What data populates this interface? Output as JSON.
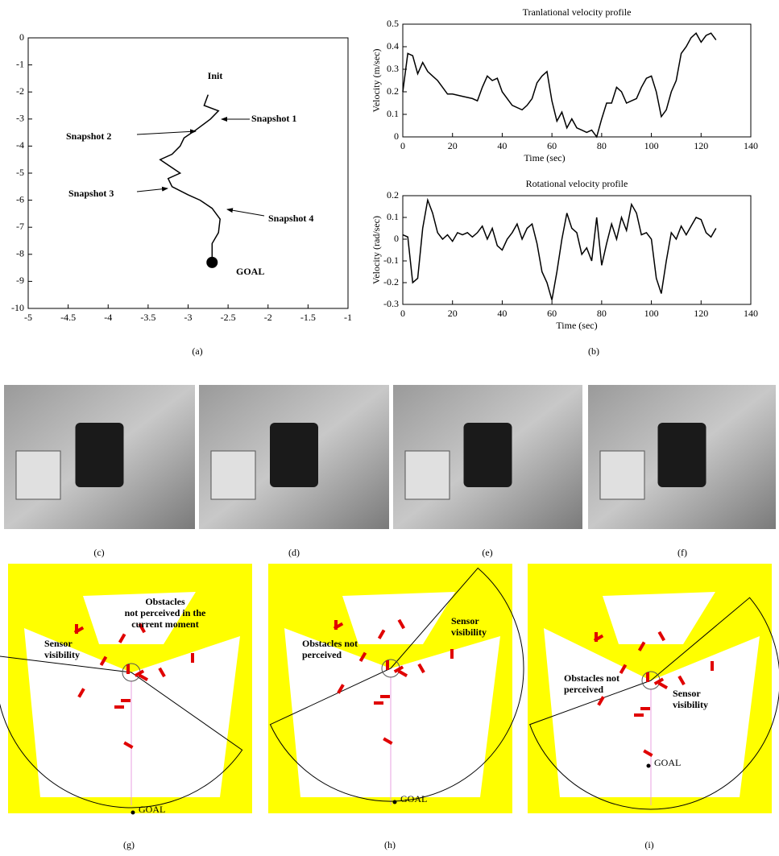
{
  "chart_data": [
    {
      "type": "line",
      "x": [
        -2.75,
        -2.8,
        -2.62,
        -2.72,
        -2.9,
        -3.05,
        -3.1,
        -3.2,
        -3.35,
        -3.2,
        -3.1,
        -3.25,
        -3.2,
        -3.0,
        -2.85,
        -2.7,
        -2.6,
        -2.62,
        -2.7,
        -2.7
      ],
      "series": [
        {
          "color": "#000000",
          "values": [
            -2.1,
            -2.5,
            -2.7,
            -3.0,
            -3.4,
            -3.7,
            -4.0,
            -4.3,
            -4.5,
            -4.8,
            -5.0,
            -5.2,
            -5.5,
            -5.8,
            -6.0,
            -6.3,
            -6.7,
            -7.2,
            -7.6,
            -8.3
          ]
        }
      ],
      "goal": {
        "x": -2.7,
        "y": -8.3
      },
      "xlim": [
        -5,
        -1
      ],
      "ylim": [
        -10,
        0
      ],
      "xticks": [
        -5,
        -4.5,
        -4,
        -3.5,
        -3,
        -2.5,
        -2,
        -1.5,
        -1
      ],
      "yticks": [
        0,
        -1,
        -2,
        -3,
        -4,
        -5,
        -6,
        -7,
        -8,
        -9,
        -10
      ],
      "annotations": [
        "Init",
        "Snapshot 1",
        "Snapshot 2",
        "Snapshot 3",
        "Snapshot 4",
        "GOAL"
      ]
    },
    {
      "type": "line",
      "title": "Tranlational velocity profile",
      "x_label": "Time (sec)",
      "y_label": "Velocity (m/sec)",
      "x": [
        0,
        2,
        4,
        6,
        8,
        10,
        12,
        14,
        16,
        18,
        20,
        24,
        28,
        30,
        32,
        34,
        36,
        38,
        40,
        44,
        48,
        50,
        52,
        54,
        56,
        58,
        60,
        62,
        64,
        66,
        68,
        70,
        72,
        74,
        76,
        78,
        80,
        82,
        84,
        86,
        88,
        90,
        92,
        94,
        96,
        98,
        100,
        102,
        104,
        106,
        108,
        110,
        112,
        114,
        116,
        118,
        120,
        122,
        124,
        126
      ],
      "series": [
        {
          "color": "#000000",
          "values": [
            0.2,
            0.37,
            0.36,
            0.28,
            0.33,
            0.29,
            0.27,
            0.25,
            0.22,
            0.19,
            0.19,
            0.18,
            0.17,
            0.16,
            0.22,
            0.27,
            0.25,
            0.26,
            0.2,
            0.14,
            0.12,
            0.14,
            0.17,
            0.24,
            0.27,
            0.29,
            0.16,
            0.07,
            0.11,
            0.04,
            0.08,
            0.04,
            0.03,
            0.02,
            0.03,
            0.0,
            0.08,
            0.15,
            0.15,
            0.22,
            0.2,
            0.15,
            0.16,
            0.17,
            0.22,
            0.26,
            0.27,
            0.2,
            0.09,
            0.12,
            0.2,
            0.25,
            0.37,
            0.4,
            0.44,
            0.46,
            0.42,
            0.45,
            0.46,
            0.43
          ]
        }
      ],
      "xlim": [
        0,
        140
      ],
      "ylim": [
        0,
        0.5
      ],
      "xticks": [
        0,
        20,
        40,
        60,
        80,
        100,
        120,
        140
      ],
      "yticks": [
        0,
        0.1,
        0.2,
        0.3,
        0.4,
        0.5
      ]
    },
    {
      "type": "line",
      "title": "Rotational velocity profile",
      "x_label": "Time (sec)",
      "y_label": "Velocity (rad/sec)",
      "x": [
        0,
        2,
        4,
        6,
        8,
        10,
        12,
        14,
        16,
        18,
        20,
        22,
        24,
        26,
        28,
        30,
        32,
        34,
        36,
        38,
        40,
        42,
        44,
        46,
        48,
        50,
        52,
        54,
        56,
        58,
        60,
        62,
        64,
        66,
        68,
        70,
        72,
        74,
        76,
        78,
        80,
        82,
        84,
        86,
        88,
        90,
        92,
        94,
        96,
        98,
        100,
        102,
        104,
        106,
        108,
        110,
        112,
        114,
        116,
        118,
        120,
        122,
        124,
        126
      ],
      "series": [
        {
          "color": "#000000",
          "values": [
            0.02,
            0.01,
            -0.2,
            -0.18,
            0.05,
            0.18,
            0.12,
            0.03,
            0.0,
            0.02,
            -0.01,
            0.03,
            0.02,
            0.03,
            0.01,
            0.03,
            0.06,
            0.0,
            0.05,
            -0.03,
            -0.05,
            0.0,
            0.03,
            0.07,
            0.0,
            0.05,
            0.07,
            -0.02,
            -0.15,
            -0.2,
            -0.28,
            -0.15,
            0.0,
            0.12,
            0.05,
            0.03,
            -0.07,
            -0.04,
            -0.1,
            0.1,
            -0.12,
            -0.02,
            0.07,
            0.0,
            0.1,
            0.04,
            0.16,
            0.12,
            0.02,
            0.03,
            0.0,
            -0.18,
            -0.25,
            -0.1,
            0.03,
            0.0,
            0.06,
            0.02,
            0.06,
            0.1,
            0.09,
            0.03,
            0.01,
            0.05
          ]
        }
      ],
      "xlim": [
        0,
        140
      ],
      "ylim": [
        -0.3,
        0.2
      ],
      "xticks": [
        0,
        20,
        40,
        60,
        80,
        100,
        120,
        140
      ],
      "yticks": [
        -0.3,
        -0.2,
        -0.1,
        0,
        0.1,
        0.2
      ]
    }
  ],
  "panel_labels": [
    "(a)",
    "(b)",
    "(c)",
    "(d)",
    "(e)",
    "(f)",
    "(g)",
    "(h)",
    "(i)"
  ],
  "maps": [
    {
      "annotations": [
        [
          "Obstacles",
          "not perceived in the",
          "current moment"
        ],
        [
          "Sensor",
          "visibility"
        ],
        [
          "GOAL"
        ]
      ]
    },
    {
      "annotations": [
        [
          "Obstacles not",
          "perceived"
        ],
        [
          "Sensor",
          "visibility"
        ],
        [
          "GOAL"
        ]
      ]
    },
    {
      "annotations": [
        [
          "Obstacles not",
          "perceived"
        ],
        [
          "Sensor",
          "visibility"
        ],
        [
          "GOAL"
        ]
      ]
    }
  ]
}
